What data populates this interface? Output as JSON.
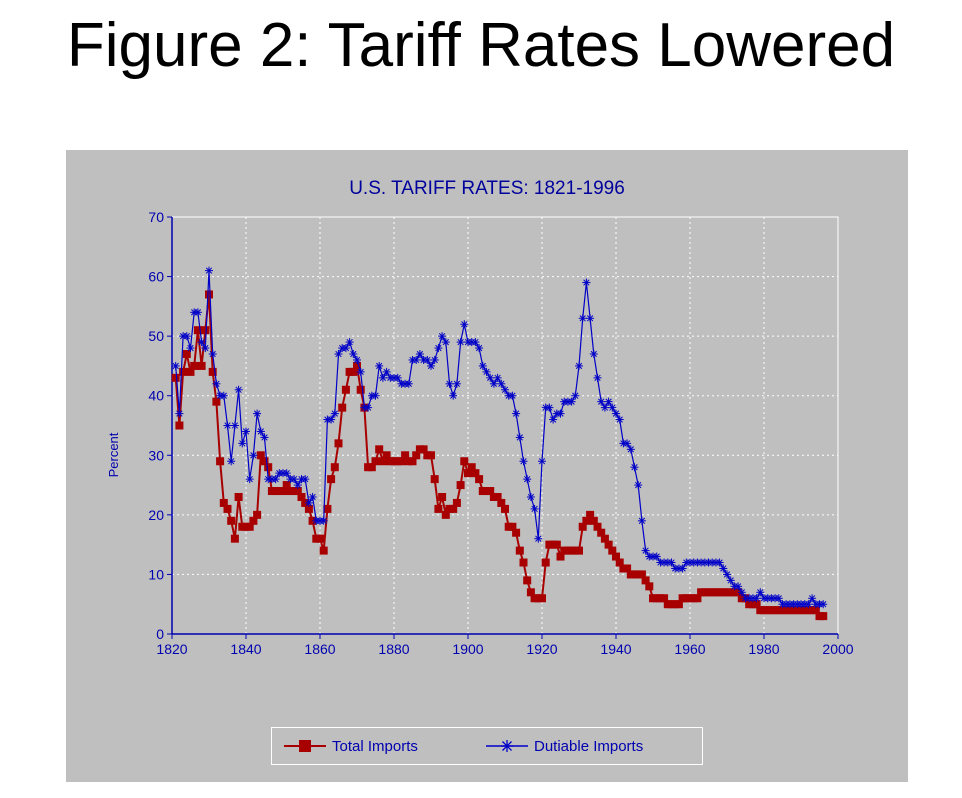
{
  "slide": {
    "title": "Figure 2: Tariff Rates Lowered"
  },
  "colors": {
    "panel": "#bfbfbf",
    "total": "#a80000",
    "dutiable": "#0000c8",
    "axis": "#0000b0",
    "title": "#00009c",
    "grid": "#ffffff"
  },
  "chart_data": {
    "type": "line",
    "title": "U.S. TARIFF RATES: 1821-1996",
    "xlabel": "",
    "ylabel": "Percent",
    "xlim": [
      1820,
      2000
    ],
    "ylim": [
      0,
      70
    ],
    "xticks": [
      1820,
      1840,
      1860,
      1880,
      1900,
      1920,
      1940,
      1960,
      1980,
      2000
    ],
    "yticks": [
      0,
      10,
      20,
      30,
      40,
      50,
      60,
      70
    ],
    "grid": true,
    "legend": "bottom",
    "series": [
      {
        "name": "Total Imports",
        "marker": "square",
        "color": "#a80000",
        "x": [
          1821,
          1822,
          1823,
          1824,
          1825,
          1826,
          1827,
          1828,
          1829,
          1830,
          1831,
          1832,
          1833,
          1834,
          1835,
          1836,
          1837,
          1838,
          1839,
          1840,
          1841,
          1842,
          1843,
          1844,
          1845,
          1846,
          1847,
          1848,
          1849,
          1850,
          1851,
          1852,
          1853,
          1854,
          1855,
          1856,
          1857,
          1858,
          1859,
          1860,
          1861,
          1862,
          1863,
          1864,
          1865,
          1866,
          1867,
          1868,
          1869,
          1870,
          1871,
          1872,
          1873,
          1874,
          1875,
          1876,
          1877,
          1878,
          1879,
          1880,
          1881,
          1882,
          1883,
          1884,
          1885,
          1886,
          1887,
          1888,
          1889,
          1890,
          1891,
          1892,
          1893,
          1894,
          1895,
          1896,
          1897,
          1898,
          1899,
          1900,
          1901,
          1902,
          1903,
          1904,
          1905,
          1906,
          1907,
          1908,
          1909,
          1910,
          1911,
          1912,
          1913,
          1914,
          1915,
          1916,
          1917,
          1918,
          1919,
          1920,
          1921,
          1922,
          1923,
          1924,
          1925,
          1926,
          1927,
          1928,
          1929,
          1930,
          1931,
          1932,
          1933,
          1934,
          1935,
          1936,
          1937,
          1938,
          1939,
          1940,
          1941,
          1942,
          1943,
          1944,
          1945,
          1946,
          1947,
          1948,
          1949,
          1950,
          1951,
          1952,
          1953,
          1954,
          1955,
          1956,
          1957,
          1958,
          1959,
          1960,
          1961,
          1962,
          1963,
          1964,
          1965,
          1966,
          1967,
          1968,
          1969,
          1970,
          1971,
          1972,
          1973,
          1974,
          1975,
          1976,
          1977,
          1978,
          1979,
          1980,
          1981,
          1982,
          1983,
          1984,
          1985,
          1986,
          1987,
          1988,
          1989,
          1990,
          1991,
          1992,
          1993,
          1994,
          1995,
          1996
        ],
        "values": [
          43,
          35,
          44,
          47,
          44,
          45,
          51,
          45,
          51,
          57,
          44,
          39,
          29,
          22,
          21,
          19,
          16,
          23,
          18,
          18,
          18,
          19,
          20,
          30,
          29,
          28,
          24,
          24,
          24,
          24,
          25,
          24,
          24,
          24,
          23,
          22,
          21,
          19,
          16,
          16,
          14,
          21,
          26,
          28,
          32,
          38,
          41,
          44,
          44,
          45,
          41,
          38,
          28,
          28,
          29,
          31,
          29,
          30,
          29,
          29,
          29,
          29,
          30,
          29,
          29,
          30,
          31,
          31,
          30,
          30,
          26,
          21,
          23,
          20,
          21,
          21,
          22,
          25,
          29,
          27,
          28,
          27,
          26,
          24,
          24,
          24,
          23,
          23,
          22,
          21,
          18,
          18,
          17,
          14,
          12,
          9,
          7,
          6,
          6,
          6,
          12,
          15,
          15,
          15,
          13,
          14,
          14,
          14,
          14,
          14,
          18,
          19,
          20,
          19,
          18,
          17,
          16,
          15,
          14,
          13,
          12,
          11,
          11,
          10,
          10,
          10,
          10,
          9,
          8,
          6,
          6,
          6,
          6,
          5,
          5,
          5,
          5,
          6,
          6,
          6,
          6,
          6,
          7,
          7,
          7,
          7,
          7,
          7,
          7,
          7,
          7,
          7,
          7,
          6,
          6,
          5,
          5,
          5,
          4,
          4,
          4,
          4,
          4,
          4,
          4,
          4,
          4,
          4,
          4,
          4,
          4,
          4,
          4,
          4,
          3,
          3
        ]
      },
      {
        "name": "Dutiable Imports",
        "marker": "asterisk",
        "color": "#0000c8",
        "x": [
          1821,
          1822,
          1823,
          1824,
          1825,
          1826,
          1827,
          1828,
          1829,
          1830,
          1831,
          1832,
          1833,
          1834,
          1835,
          1836,
          1837,
          1838,
          1839,
          1840,
          1841,
          1842,
          1843,
          1844,
          1845,
          1846,
          1847,
          1848,
          1849,
          1850,
          1851,
          1852,
          1853,
          1854,
          1855,
          1856,
          1857,
          1858,
          1859,
          1860,
          1861,
          1862,
          1863,
          1864,
          1865,
          1866,
          1867,
          1868,
          1869,
          1870,
          1871,
          1872,
          1873,
          1874,
          1875,
          1876,
          1877,
          1878,
          1879,
          1880,
          1881,
          1882,
          1883,
          1884,
          1885,
          1886,
          1887,
          1888,
          1889,
          1890,
          1891,
          1892,
          1893,
          1894,
          1895,
          1896,
          1897,
          1898,
          1899,
          1900,
          1901,
          1902,
          1903,
          1904,
          1905,
          1906,
          1907,
          1908,
          1909,
          1910,
          1911,
          1912,
          1913,
          1914,
          1915,
          1916,
          1917,
          1918,
          1919,
          1920,
          1921,
          1922,
          1923,
          1924,
          1925,
          1926,
          1927,
          1928,
          1929,
          1930,
          1931,
          1932,
          1933,
          1934,
          1935,
          1936,
          1937,
          1938,
          1939,
          1940,
          1941,
          1942,
          1943,
          1944,
          1945,
          1946,
          1947,
          1948,
          1949,
          1950,
          1951,
          1952,
          1953,
          1954,
          1955,
          1956,
          1957,
          1958,
          1959,
          1960,
          1961,
          1962,
          1963,
          1964,
          1965,
          1966,
          1967,
          1968,
          1969,
          1970,
          1971,
          1972,
          1973,
          1974,
          1975,
          1976,
          1977,
          1978,
          1979,
          1980,
          1981,
          1982,
          1983,
          1984,
          1985,
          1986,
          1987,
          1988,
          1989,
          1990,
          1991,
          1992,
          1993,
          1994,
          1995,
          1996
        ],
        "values": [
          45,
          37,
          50,
          50,
          48,
          54,
          54,
          49,
          48,
          61,
          47,
          42,
          40,
          40,
          35,
          29,
          35,
          41,
          32,
          34,
          26,
          30,
          37,
          34,
          33,
          26,
          26,
          26,
          27,
          27,
          27,
          26,
          26,
          25,
          26,
          26,
          22,
          23,
          19,
          19,
          19,
          36,
          36,
          37,
          47,
          48,
          48,
          49,
          47,
          46,
          44,
          38,
          38,
          40,
          40,
          45,
          43,
          44,
          43,
          43,
          43,
          42,
          42,
          42,
          46,
          46,
          47,
          46,
          46,
          45,
          46,
          48,
          50,
          49,
          42,
          40,
          42,
          49,
          52,
          49,
          49,
          49,
          48,
          45,
          44,
          43,
          42,
          43,
          42,
          41,
          40,
          40,
          37,
          33,
          29,
          26,
          23,
          21,
          16,
          29,
          38,
          38,
          36,
          37,
          37,
          39,
          39,
          39,
          40,
          45,
          53,
          59,
          53,
          47,
          43,
          39,
          38,
          39,
          38,
          37,
          36,
          32,
          32,
          31,
          28,
          25,
          19,
          14,
          13,
          13,
          13,
          12,
          12,
          12,
          12,
          11,
          11,
          11,
          12,
          12,
          12,
          12,
          12,
          12,
          12,
          12,
          12,
          12,
          11,
          10,
          9,
          8,
          8,
          7,
          6,
          6,
          6,
          6,
          7,
          6,
          6,
          6,
          6,
          6,
          5,
          5,
          5,
          5,
          5,
          5,
          5,
          5,
          6,
          5,
          5,
          5
        ]
      }
    ]
  }
}
